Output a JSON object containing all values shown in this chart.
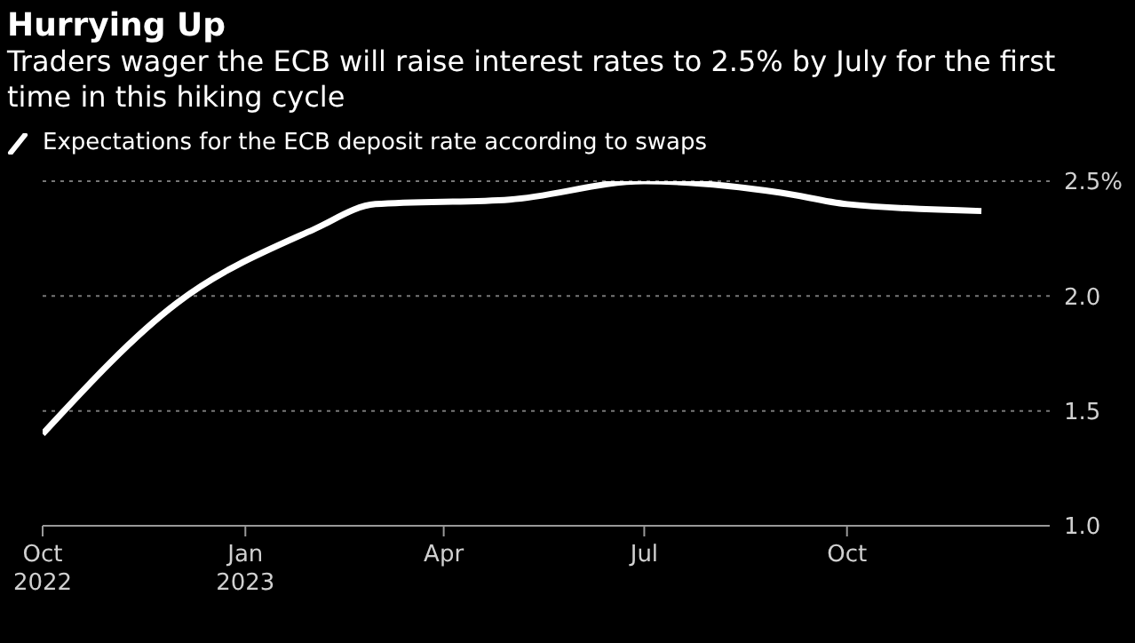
{
  "chart_data": {
    "type": "line",
    "title": "Hurrying Up",
    "subtitle": "Traders wager the ECB will raise interest rates to 2.5% by July for the first time in this hiking cycle",
    "x": [
      "2022-10",
      "2022-12",
      "2023-02",
      "2023-03",
      "2023-05",
      "2023-07",
      "2023-09",
      "2023-10",
      "2023-12"
    ],
    "series": [
      {
        "name": "Expectations for the ECB deposit rate according to swaps",
        "color": "#ffffff",
        "values": [
          1.4,
          1.97,
          2.29,
          2.4,
          2.42,
          2.5,
          2.45,
          2.4,
          2.37
        ]
      }
    ],
    "xlim": [
      "2022-10",
      "2024-01"
    ],
    "xticks": [
      {
        "value": "2022-10",
        "label": "Oct\n2022"
      },
      {
        "value": "2023-01",
        "label": "Jan\n2023"
      },
      {
        "value": "2023-04",
        "label": "Apr"
      },
      {
        "value": "2023-07",
        "label": "Jul"
      },
      {
        "value": "2023-10",
        "label": "Oct"
      }
    ],
    "ylim": [
      1.0,
      2.5
    ],
    "yticks": [
      {
        "value": 1,
        "label": "1.0"
      },
      1.5,
      {
        "value": 2,
        "label": "2.0"
      },
      {
        "value": 2.5,
        "label": "2.5%"
      }
    ],
    "grid": "y",
    "legend": "top left",
    "marker": "none",
    "line_style": "solid"
  }
}
